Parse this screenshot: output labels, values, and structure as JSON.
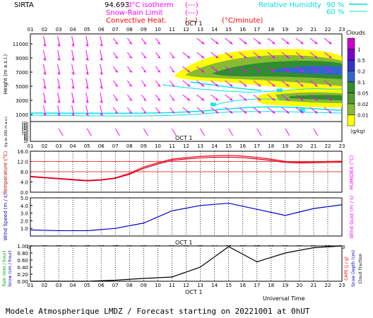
{
  "header": {
    "station": "SIRTA",
    "coords": "94.693",
    "legend_left": [
      {
        "label": "0°C isotherm",
        "sym": "(---)",
        "color": "#ff00ff"
      },
      {
        "label": "Snow-Rain Limit",
        "sym": "(---)",
        "color": "#ff00ff"
      },
      {
        "label": "Convective Heat.",
        "sym": "(—)",
        "units": "(°C/minute)",
        "color": "#ff0000"
      }
    ],
    "legend_right": {
      "label": "Relative Humidity",
      "items": [
        "90 %",
        "60 %"
      ],
      "color": "#00e0e0"
    }
  },
  "hours": [
    "01",
    "02",
    "03",
    "04",
    "05",
    "06",
    "07",
    "08",
    "09",
    "10",
    "11",
    "12",
    "13",
    "14",
    "15",
    "16",
    "17",
    "18",
    "19",
    "20",
    "21",
    "22",
    "23"
  ],
  "date_label": "OCT  1",
  "footer": {
    "universal_time": "Universal Time",
    "title": "Modele Atmospherique LMDZ / Forecast starting on 20221001 at 0hUT"
  },
  "clouds_colorbar": {
    "title": "Clouds",
    "units": "(g/kg)",
    "ticks": [
      "1",
      "0.5",
      "0.2",
      "0.1",
      "0.05",
      "0.02",
      "0.01"
    ],
    "colors": [
      "#cc00cc",
      "#7a00cc",
      "#3333cc",
      "#3366cc",
      "#2f8f2f",
      "#559933",
      "#88bb33",
      "#ffff00"
    ]
  },
  "chart_data": [
    {
      "type": "heatmap",
      "name_hidden": "vertical-profile",
      "ylabel": "Height (m a.s.l.)",
      "ylabel_lower": "Up to 200 m a.s.l.",
      "yticks_upper": [
        11000,
        9000,
        7000,
        5000,
        3000,
        1000
      ],
      "yticks_lower": [
        200,
        180,
        160,
        140,
        120,
        100,
        80,
        60,
        40,
        20
      ],
      "contour_labels": [
        "90",
        "60",
        "90"
      ]
    },
    {
      "type": "line",
      "ylabel": "Temperature (°C)",
      "ylabel_right": "HUMIDEX (°C)",
      "yticks": [
        16.0,
        12.0,
        8.0,
        4.0,
        0.0
      ],
      "ylim": [
        0,
        16
      ],
      "x": [
        "01",
        "02",
        "03",
        "04",
        "05",
        "06",
        "07",
        "08",
        "09",
        "10",
        "11",
        "12",
        "13",
        "14",
        "15",
        "16",
        "17",
        "18",
        "19",
        "20",
        "21",
        "22",
        "23"
      ],
      "series": [
        {
          "values": [
            6.2,
            5.8,
            5.4,
            5.0,
            4.6,
            4.9,
            5.6,
            7.4,
            9.8,
            11.5,
            12.9,
            13.5,
            14.0,
            14.2,
            14.4,
            14.1,
            13.6,
            12.9,
            12.0,
            11.8,
            11.9,
            12.0,
            12.1
          ],
          "color": "#ff0000"
        },
        {
          "values": [
            6.0,
            5.6,
            5.2,
            4.8,
            4.4,
            4.7,
            5.4,
            7.0,
            9.3,
            11.0,
            12.4,
            13.0,
            13.4,
            13.6,
            13.7,
            13.5,
            13.0,
            12.4,
            11.6,
            11.4,
            11.5,
            11.6,
            11.7
          ],
          "color": "#cc0033"
        }
      ],
      "guides": [
        8.0,
        12.0
      ]
    },
    {
      "type": "line",
      "ylabel": "Wind Speed (m / s)",
      "ylabel_right": "Wind Gust (m / s)",
      "yticks": [
        5.0,
        4.0,
        3.0,
        2.0,
        1.0
      ],
      "ylim": [
        0,
        5
      ],
      "x": [
        "01",
        "03",
        "05",
        "07",
        "09",
        "11",
        "13",
        "15",
        "17",
        "19",
        "21",
        "23"
      ],
      "series": [
        {
          "values": [
            0.8,
            0.7,
            0.7,
            1.0,
            1.7,
            3.3,
            4.0,
            4.3,
            3.5,
            2.7,
            3.6,
            4.1
          ],
          "color": "#0000cc"
        }
      ]
    },
    {
      "type": "line",
      "ylabel": "Rain (mm / hour)",
      "ylabel2": "Snow (cm / hour)",
      "ylabel_right": "CAPE (J / g)",
      "ylabel_right2": "Snow Depth (cm)",
      "ylabel_right3": "Cloud Fraction",
      "yticks": [
        1.0,
        0.8,
        0.6,
        0.4,
        0.2,
        0.0
      ],
      "ylim": [
        0,
        1
      ],
      "x": [
        "01",
        "03",
        "05",
        "07",
        "09",
        "11",
        "13",
        "15",
        "17",
        "19",
        "21",
        "23"
      ],
      "series": [
        {
          "values": [
            0.0,
            0.0,
            0.0,
            0.03,
            0.08,
            0.12,
            0.4,
            0.98,
            0.55,
            0.8,
            0.95,
            1.0
          ],
          "color": "#000000"
        }
      ]
    }
  ]
}
